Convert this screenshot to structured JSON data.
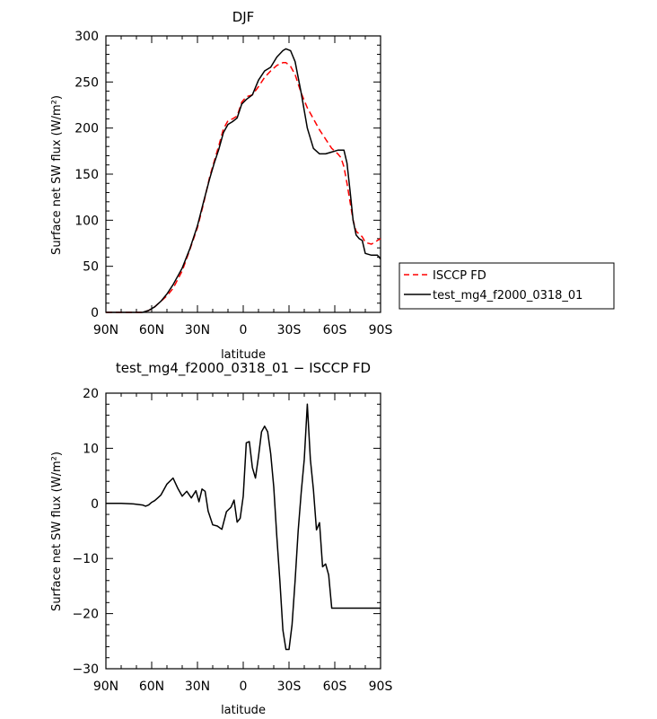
{
  "chart_data": [
    {
      "type": "line",
      "title": "DJF",
      "xlabel": "latitude",
      "ylabel": "Surface net SW flux (W/m²)",
      "xlim": [
        90,
        -90
      ],
      "ylim": [
        0,
        300
      ],
      "xticks": [
        "90N",
        "60N",
        "30N",
        "0",
        "30S",
        "60S",
        "90S"
      ],
      "yticks": [
        "0",
        "50",
        "100",
        "150",
        "200",
        "250",
        "300"
      ],
      "legend": "right, outside plot",
      "series": [
        {
          "name": "ISCCP FD",
          "color": "#ff0000",
          "style": "dashed",
          "x": [
            90,
            80,
            72,
            66,
            62,
            58,
            54,
            50,
            46,
            40,
            35,
            30,
            26,
            22,
            19,
            16,
            13,
            10,
            7,
            4,
            1,
            -2,
            -6,
            -10,
            -14,
            -18,
            -22,
            -26,
            -28,
            -31,
            -34,
            -38,
            -42,
            -46,
            -50,
            -54,
            -58,
            -62,
            -64,
            -66,
            -68,
            -70,
            -72,
            -74,
            -76,
            -78,
            -80,
            -84,
            -86,
            -88,
            -90
          ],
          "y": [
            0,
            0,
            0,
            0,
            2,
            6,
            12,
            18,
            26,
            45,
            68,
            92,
            118,
            147,
            164,
            181,
            199,
            208,
            210,
            213,
            228,
            234,
            236,
            245,
            255,
            262,
            268,
            271,
            271,
            267,
            258,
            238,
            222,
            210,
            198,
            188,
            178,
            172,
            168,
            158,
            140,
            120,
            100,
            88,
            85,
            82,
            76,
            74,
            76,
            78,
            80
          ]
        },
        {
          "name": "test_mg4_f2000_0318_01",
          "color": "#000000",
          "style": "solid",
          "x": [
            90,
            80,
            72,
            66,
            62,
            58,
            54,
            50,
            46,
            40,
            35,
            30,
            26,
            22,
            19,
            16,
            13,
            10,
            7,
            4,
            1,
            -2,
            -6,
            -10,
            -14,
            -18,
            -22,
            -26,
            -28,
            -31,
            -34,
            -38,
            -42,
            -46,
            -50,
            -54,
            -58,
            -62,
            -64,
            -66,
            -68,
            -70,
            -72,
            -74,
            -76,
            -78,
            -80,
            -84,
            -86,
            -88,
            -90
          ],
          "y": [
            0,
            0,
            0,
            0,
            2,
            6,
            12,
            20,
            30,
            48,
            69,
            94,
            120,
            145,
            162,
            177,
            195,
            204,
            207,
            211,
            226,
            231,
            236,
            252,
            262,
            266,
            277,
            284,
            286,
            284,
            272,
            238,
            200,
            178,
            172,
            172,
            174,
            176,
            176,
            176,
            162,
            132,
            100,
            84,
            80,
            78,
            64,
            62,
            62,
            62,
            58
          ]
        }
      ]
    },
    {
      "type": "line",
      "title": "test_mg4_f2000_0318_01 − ISCCP FD",
      "xlabel": "latitude",
      "ylabel": "Surface net SW flux (W/m²)",
      "xlim": [
        90,
        -90
      ],
      "ylim": [
        -30,
        20
      ],
      "xticks": [
        "90N",
        "60N",
        "30N",
        "0",
        "30S",
        "60S",
        "90S"
      ],
      "yticks": [
        "20",
        "10",
        "0",
        "−10",
        "−20",
        "−30"
      ],
      "series": [
        {
          "color": "#000000",
          "style": "solid",
          "x": [
            90,
            80,
            72,
            66,
            64,
            62,
            60,
            58,
            56,
            54,
            50,
            46,
            43,
            40,
            37,
            34,
            31,
            29,
            27,
            25,
            23,
            20,
            17,
            14,
            11,
            8,
            6,
            4,
            2,
            0,
            -2,
            -4,
            -6,
            -8,
            -10,
            -12,
            -14,
            -16,
            -18,
            -20,
            -22,
            -24,
            -26,
            -28,
            -30,
            -32,
            -34,
            -36,
            -38,
            -40,
            -42,
            -44,
            -46,
            -48,
            -50,
            -52,
            -54,
            -56,
            -58,
            -60,
            -62,
            -64,
            -66,
            -68,
            -70,
            -72,
            -74,
            -76,
            -78,
            -80,
            -82,
            -84,
            -86,
            -88,
            -90
          ],
          "y": [
            0,
            0,
            -0.1,
            -0.3,
            -0.5,
            -0.3,
            0.2,
            0.5,
            1,
            1.5,
            3.5,
            4.6,
            2.8,
            1.3,
            2.2,
            1,
            2.3,
            0.3,
            2.6,
            2.2,
            -1.4,
            -3.9,
            -4.1,
            -4.7,
            -1.5,
            -0.7,
            0.6,
            -3.4,
            -2.7,
            1.3,
            11,
            11.2,
            6.5,
            4.6,
            8.5,
            13,
            14,
            13,
            9,
            3,
            -6,
            -14,
            -23,
            -26.5,
            -26.5,
            -22,
            -14,
            -5,
            2,
            8,
            18,
            8,
            2.5,
            -4.8,
            -3.5,
            -11.5,
            -11,
            -13,
            -19,
            -19,
            -19,
            -19,
            -19,
            -19,
            -19,
            -19,
            -19,
            -19,
            -19,
            -19,
            -19,
            -19,
            -19,
            -19,
            -19
          ]
        }
      ]
    }
  ]
}
